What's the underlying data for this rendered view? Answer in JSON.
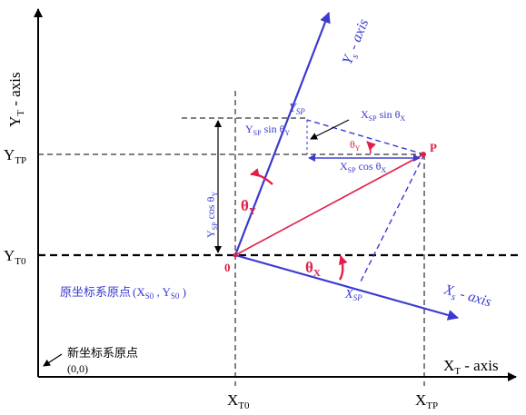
{
  "colors": {
    "axis": "#000000",
    "blue": "#3a3ad0",
    "red": "#e0204a",
    "label_blue": "#3a3ad0"
  },
  "labels": {
    "yt_axis": "Y",
    "yt_axis_sub": "T",
    "yt_axis_suffix": " - axis",
    "xt_axis": "X",
    "xt_axis_sub": "T",
    "xt_axis_suffix": " - axis",
    "ys_axis": "Y",
    "ys_axis_sub": "s",
    "ys_axis_suffix": " - axis",
    "xs_axis": "X",
    "xs_axis_sub": "s",
    "xs_axis_suffix": " - axis",
    "ytp": "Y",
    "ytp_sub": "TP",
    "yt0": "Y",
    "yt0_sub": "T0",
    "xt0": "X",
    "xt0_sub": "T0",
    "xtp": "X",
    "xtp_sub": "TP",
    "ysp": "Y",
    "ysp_sub": "SP",
    "xsp": "X",
    "xsp_sub": "SP",
    "origin_s": "0",
    "point_p": "P",
    "theta_y": "θ",
    "theta_y_sub": "Y",
    "theta_x": "θ",
    "theta_x_sub": "X",
    "theta_small": "θ",
    "theta_small_sub": "Y",
    "xsp_sin_a": "X",
    "xsp_sin_sub": "SP",
    "xsp_sin_b": " sin θ",
    "xsp_sin_sub2": "X",
    "ysp_sin_a": "Y",
    "ysp_sin_sub": "SP",
    "ysp_sin_b": " sin  θ",
    "ysp_sin_sub2": "Y",
    "xsp_cos_a": "X",
    "xsp_cos_sub": "SP",
    "xsp_cos_b": " cos θ",
    "xsp_cos_sub2": "X",
    "ysp_cos_a": "Y",
    "ysp_cos_sub": "SP",
    "ysp_cos_b": " cos θ",
    "ysp_cos_sub2": "Y",
    "old_origin_text": "原坐标系原点",
    "old_origin_coords_a": "(X",
    "old_origin_coords_sub1": "S0",
    "old_origin_coords_mid": " , Y",
    "old_origin_coords_sub2": "S0",
    "old_origin_coords_end": " )",
    "new_origin_text": "新坐标系原点",
    "new_origin_coords": "(0,0)"
  }
}
